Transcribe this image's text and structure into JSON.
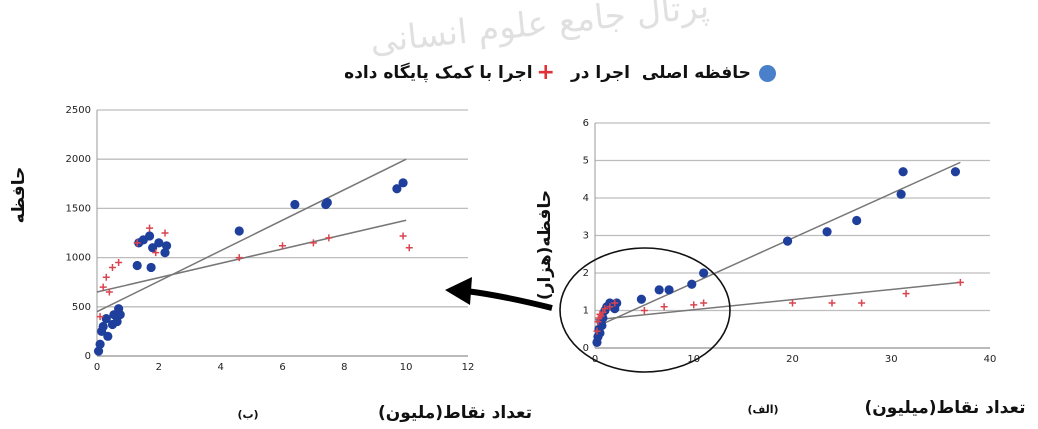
{
  "watermark_text": "پرتال جامع علوم انسانی",
  "legend": {
    "items": [
      {
        "label": "حافظه اصلی",
        "marker": "dot",
        "color": "#4a7fc9"
      },
      {
        "label": "اجرا در",
        "marker": "none",
        "color": "#111111"
      },
      {
        "label": "اجرا با کمک پایگاه داده",
        "marker": "plus",
        "color": "#e0303a"
      }
    ],
    "plus_symbol": "+"
  },
  "colors": {
    "dot": "#1f3f9c",
    "plus": "#d9444f",
    "trend": "#777777",
    "grid": "#bdbdbd"
  },
  "chart_data": [
    {
      "id": "right",
      "type": "scatter",
      "panel_label": "(الف)",
      "xlabel": "تعداد نقاط(میلیون)",
      "ylabel": "حافظه(هزار)",
      "xlim": [
        0,
        40
      ],
      "ylim": [
        0,
        6
      ],
      "xticks": [
        0,
        10,
        20,
        30,
        40
      ],
      "yticks": [
        0,
        1,
        2,
        3,
        4,
        5,
        6
      ],
      "grid": true,
      "series": [
        {
          "marker": "dot",
          "points": [
            [
              0.2,
              0.15
            ],
            [
              0.3,
              0.3
            ],
            [
              0.4,
              0.5
            ],
            [
              0.5,
              0.4
            ],
            [
              0.6,
              0.7
            ],
            [
              0.7,
              0.6
            ],
            [
              0.8,
              0.8
            ],
            [
              1.0,
              1.0
            ],
            [
              1.2,
              1.1
            ],
            [
              1.5,
              1.2
            ],
            [
              1.8,
              1.15
            ],
            [
              2.0,
              1.05
            ],
            [
              2.2,
              1.2
            ],
            [
              4.7,
              1.3
            ],
            [
              6.5,
              1.55
            ],
            [
              7.5,
              1.55
            ],
            [
              9.8,
              1.7
            ],
            [
              11.0,
              2.0
            ],
            [
              19.5,
              2.85
            ],
            [
              23.5,
              3.1
            ],
            [
              26.5,
              3.4
            ],
            [
              31.0,
              4.1
            ],
            [
              31.2,
              4.7
            ],
            [
              36.5,
              4.7
            ]
          ]
        },
        {
          "marker": "plus",
          "points": [
            [
              0.2,
              0.45
            ],
            [
              0.3,
              0.7
            ],
            [
              0.4,
              0.8
            ],
            [
              0.5,
              0.9
            ],
            [
              0.6,
              0.85
            ],
            [
              0.8,
              0.95
            ],
            [
              1.0,
              1.05
            ],
            [
              1.5,
              1.1
            ],
            [
              2.0,
              1.2
            ],
            [
              5.0,
              1.0
            ],
            [
              7.0,
              1.1
            ],
            [
              10.0,
              1.15
            ],
            [
              11.0,
              1.2
            ],
            [
              20.0,
              1.2
            ],
            [
              24.0,
              1.2
            ],
            [
              27.0,
              1.2
            ],
            [
              31.5,
              1.45
            ],
            [
              37.0,
              1.75
            ]
          ]
        }
      ],
      "trendlines": [
        [
          [
            0,
            0.55
          ],
          [
            37,
            4.95
          ]
        ],
        [
          [
            0,
            0.75
          ],
          [
            37,
            1.75
          ]
        ]
      ]
    },
    {
      "id": "left",
      "type": "scatter",
      "panel_label": "(ب)",
      "xlabel": "تعداد نقاط(ملیون)",
      "ylabel": "حافظه",
      "xlim": [
        0,
        12
      ],
      "ylim": [
        0,
        2500
      ],
      "xticks": [
        0,
        2,
        4,
        6,
        8,
        10,
        12
      ],
      "yticks": [
        0,
        500,
        1000,
        1500,
        2000,
        2500
      ],
      "grid": true,
      "series": [
        {
          "marker": "dot",
          "points": [
            [
              0.05,
              50
            ],
            [
              0.1,
              120
            ],
            [
              0.15,
              250
            ],
            [
              0.2,
              300
            ],
            [
              0.3,
              380
            ],
            [
              0.35,
              200
            ],
            [
              0.5,
              320
            ],
            [
              0.55,
              420
            ],
            [
              0.65,
              350
            ],
            [
              0.7,
              480
            ],
            [
              0.75,
              420
            ],
            [
              1.3,
              920
            ],
            [
              1.35,
              1150
            ],
            [
              1.5,
              1180
            ],
            [
              1.7,
              1220
            ],
            [
              1.75,
              900
            ],
            [
              1.8,
              1100
            ],
            [
              2.0,
              1150
            ],
            [
              2.2,
              1050
            ],
            [
              2.25,
              1120
            ],
            [
              4.6,
              1270
            ],
            [
              6.4,
              1540
            ],
            [
              7.4,
              1540
            ],
            [
              7.45,
              1560
            ],
            [
              9.7,
              1700
            ],
            [
              9.9,
              1760
            ]
          ]
        },
        {
          "marker": "plus",
          "points": [
            [
              0.1,
              400
            ],
            [
              0.2,
              700
            ],
            [
              0.3,
              800
            ],
            [
              0.4,
              650
            ],
            [
              0.5,
              900
            ],
            [
              0.7,
              950
            ],
            [
              1.3,
              1150
            ],
            [
              1.7,
              1300
            ],
            [
              1.9,
              1050
            ],
            [
              2.2,
              1250
            ],
            [
              4.6,
              1000
            ],
            [
              6.0,
              1120
            ],
            [
              7.0,
              1150
            ],
            [
              7.5,
              1200
            ],
            [
              9.9,
              1220
            ],
            [
              10.1,
              1100
            ]
          ]
        }
      ],
      "trendlines": [
        [
          [
            0,
            450
          ],
          [
            10,
            2000
          ]
        ],
        [
          [
            0,
            650
          ],
          [
            10,
            1380
          ]
        ]
      ]
    }
  ]
}
